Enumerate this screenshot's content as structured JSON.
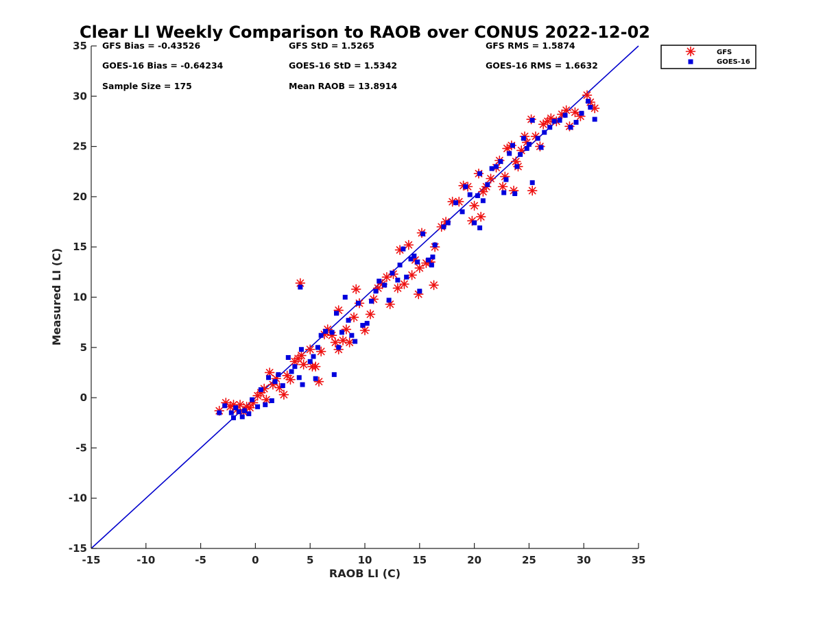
{
  "colors": {
    "gfs": "#ee1111",
    "goes16": "#0000dd",
    "line": "#0000cc",
    "axis": "#262626"
  },
  "stats": {
    "gfs_bias": "GFS Bias = -0.43526",
    "gfs_std": "GFS StD = 1.5265",
    "gfs_rms": "GFS RMS = 1.5874",
    "goes_bias": "GOES-16 Bias = -0.64234",
    "goes_std": "GOES-16 StD = 1.5342",
    "goes_rms": "GOES-16 RMS = 1.6632",
    "sample_size": "Sample Size = 175",
    "mean_raob": "Mean RAOB = 13.8914"
  },
  "chart_data": {
    "type": "scatter",
    "title": "Clear LI Weekly Comparison to RAOB over CONUS 2022-12-02",
    "xlabel": "RAOB LI (C)",
    "ylabel": "Measured LI (C)",
    "xlim": [
      -15,
      35
    ],
    "ylim": [
      -15,
      35
    ],
    "xticks": [
      -15,
      -10,
      -5,
      0,
      5,
      10,
      15,
      20,
      25,
      30,
      35
    ],
    "yticks": [
      -15,
      -10,
      -5,
      0,
      5,
      10,
      15,
      20,
      25,
      30,
      35
    ],
    "xtick_labels": [
      "-15",
      "-10",
      "-5",
      "0",
      "5",
      "10",
      "15",
      "20",
      "25",
      "30",
      "35"
    ],
    "ytick_labels": [
      "-15",
      "-10",
      "-5",
      "0",
      "5",
      "10",
      "15",
      "20",
      "25",
      "30",
      "35"
    ],
    "reference_line": {
      "name": "1:1",
      "from": [
        -15,
        -15
      ],
      "to": [
        35,
        35
      ]
    },
    "legend": {
      "position": "outside-top-right",
      "entries": [
        "GFS",
        "GOES-16"
      ]
    },
    "series": [
      {
        "name": "GFS",
        "marker": "asterisk",
        "points": [
          [
            -3.3,
            -1.3
          ],
          [
            -2.7,
            -0.5
          ],
          [
            -2.3,
            -0.9
          ],
          [
            -2.0,
            -0.7
          ],
          [
            -1.7,
            -1.2
          ],
          [
            -1.4,
            -0.7
          ],
          [
            -1.1,
            -1.4
          ],
          [
            -0.8,
            -0.9
          ],
          [
            -0.5,
            -1.0
          ],
          [
            -0.2,
            -0.5
          ],
          [
            0.2,
            0.2
          ],
          [
            0.5,
            0.5
          ],
          [
            0.8,
            0.9
          ],
          [
            1.0,
            -0.2
          ],
          [
            1.3,
            2.5
          ],
          [
            1.6,
            1.3
          ],
          [
            1.9,
            1.9
          ],
          [
            2.2,
            1.0
          ],
          [
            2.6,
            0.3
          ],
          [
            2.9,
            2.2
          ],
          [
            3.2,
            1.8
          ],
          [
            3.6,
            3.6
          ],
          [
            3.9,
            3.9
          ],
          [
            4.2,
            4.2
          ],
          [
            4.1,
            11.4
          ],
          [
            4.4,
            3.3
          ],
          [
            5.0,
            4.8
          ],
          [
            5.2,
            3.1
          ],
          [
            5.5,
            3.1
          ],
          [
            5.8,
            1.6
          ],
          [
            6.0,
            4.6
          ],
          [
            6.3,
            6.3
          ],
          [
            6.6,
            6.8
          ],
          [
            7.0,
            6.2
          ],
          [
            7.3,
            5.5
          ],
          [
            7.6,
            4.8
          ],
          [
            7.6,
            8.7
          ],
          [
            8.0,
            5.7
          ],
          [
            8.3,
            6.8
          ],
          [
            8.6,
            5.5
          ],
          [
            9.0,
            8.0
          ],
          [
            9.2,
            10.8
          ],
          [
            9.5,
            9.4
          ],
          [
            10.0,
            6.7
          ],
          [
            10.5,
            8.3
          ],
          [
            10.8,
            9.8
          ],
          [
            11.2,
            10.9
          ],
          [
            11.6,
            11.3
          ],
          [
            12.0,
            12.0
          ],
          [
            12.3,
            9.3
          ],
          [
            12.6,
            12.3
          ],
          [
            13.0,
            10.9
          ],
          [
            13.2,
            14.7
          ],
          [
            13.6,
            11.3
          ],
          [
            14.0,
            15.2
          ],
          [
            14.3,
            12.2
          ],
          [
            14.6,
            13.7
          ],
          [
            14.9,
            10.3
          ],
          [
            15.0,
            12.9
          ],
          [
            15.2,
            16.4
          ],
          [
            15.6,
            13.4
          ],
          [
            16.0,
            13.5
          ],
          [
            16.3,
            11.2
          ],
          [
            16.4,
            15.0
          ],
          [
            17.0,
            17.0
          ],
          [
            17.4,
            17.5
          ],
          [
            18.0,
            19.5
          ],
          [
            18.6,
            19.5
          ],
          [
            19.0,
            21.1
          ],
          [
            19.4,
            21.0
          ],
          [
            19.8,
            17.6
          ],
          [
            20.0,
            19.1
          ],
          [
            20.4,
            22.3
          ],
          [
            20.6,
            18.0
          ],
          [
            20.8,
            20.5
          ],
          [
            21.1,
            21.0
          ],
          [
            21.5,
            21.8
          ],
          [
            22.0,
            22.9
          ],
          [
            22.3,
            23.6
          ],
          [
            22.6,
            21.0
          ],
          [
            22.8,
            22.0
          ],
          [
            23.0,
            24.8
          ],
          [
            23.4,
            25.1
          ],
          [
            23.6,
            20.6
          ],
          [
            23.8,
            23.5
          ],
          [
            24.0,
            23.0
          ],
          [
            24.3,
            24.6
          ],
          [
            24.6,
            26.0
          ],
          [
            24.8,
            25.4
          ],
          [
            25.2,
            27.7
          ],
          [
            25.3,
            20.6
          ],
          [
            25.6,
            26.0
          ],
          [
            26.0,
            25.0
          ],
          [
            26.3,
            27.2
          ],
          [
            26.7,
            27.5
          ],
          [
            27.0,
            27.8
          ],
          [
            27.5,
            27.5
          ],
          [
            28.0,
            28.2
          ],
          [
            28.4,
            28.6
          ],
          [
            28.7,
            27.0
          ],
          [
            29.2,
            28.4
          ],
          [
            29.7,
            28.0
          ],
          [
            30.3,
            30.1
          ],
          [
            30.6,
            29.4
          ],
          [
            31.0,
            28.8
          ]
        ]
      },
      {
        "name": "GOES-16",
        "marker": "square",
        "points": [
          [
            -3.3,
            -1.5
          ],
          [
            -2.8,
            -0.8
          ],
          [
            -2.2,
            -1.5
          ],
          [
            -2.0,
            -2.0
          ],
          [
            -1.8,
            -1.0
          ],
          [
            -1.5,
            -1.4
          ],
          [
            -1.2,
            -1.9
          ],
          [
            -1.0,
            -1.3
          ],
          [
            -0.6,
            -1.6
          ],
          [
            -0.3,
            -0.2
          ],
          [
            0.2,
            -0.9
          ],
          [
            0.5,
            0.8
          ],
          [
            0.9,
            -0.7
          ],
          [
            1.2,
            2.0
          ],
          [
            1.5,
            -0.3
          ],
          [
            1.8,
            1.6
          ],
          [
            2.1,
            2.3
          ],
          [
            2.5,
            1.2
          ],
          [
            3.0,
            4.0
          ],
          [
            3.3,
            2.6
          ],
          [
            3.6,
            3.1
          ],
          [
            4.0,
            2.0
          ],
          [
            4.1,
            11.0
          ],
          [
            4.3,
            1.3
          ],
          [
            4.2,
            4.8
          ],
          [
            5.0,
            3.6
          ],
          [
            5.3,
            4.1
          ],
          [
            5.5,
            1.9
          ],
          [
            5.7,
            5.0
          ],
          [
            6.0,
            6.2
          ],
          [
            6.4,
            6.6
          ],
          [
            7.0,
            6.5
          ],
          [
            7.2,
            2.3
          ],
          [
            7.4,
            8.4
          ],
          [
            7.6,
            5.0
          ],
          [
            7.9,
            6.5
          ],
          [
            8.2,
            10.0
          ],
          [
            8.5,
            7.7
          ],
          [
            8.8,
            6.2
          ],
          [
            9.1,
            5.6
          ],
          [
            9.4,
            9.4
          ],
          [
            9.8,
            7.2
          ],
          [
            10.2,
            7.4
          ],
          [
            10.6,
            9.6
          ],
          [
            11.0,
            10.6
          ],
          [
            11.3,
            11.6
          ],
          [
            11.8,
            11.2
          ],
          [
            12.2,
            9.7
          ],
          [
            12.5,
            12.4
          ],
          [
            13.0,
            11.7
          ],
          [
            13.2,
            13.2
          ],
          [
            13.5,
            14.8
          ],
          [
            13.8,
            12.0
          ],
          [
            14.2,
            13.8
          ],
          [
            14.5,
            14.1
          ],
          [
            14.8,
            13.5
          ],
          [
            15.0,
            10.6
          ],
          [
            15.3,
            16.3
          ],
          [
            15.8,
            13.7
          ],
          [
            16.1,
            13.2
          ],
          [
            16.4,
            15.2
          ],
          [
            16.2,
            14.0
          ],
          [
            17.2,
            17.0
          ],
          [
            17.6,
            17.4
          ],
          [
            18.3,
            19.4
          ],
          [
            18.9,
            18.5
          ],
          [
            19.2,
            21.0
          ],
          [
            19.6,
            20.2
          ],
          [
            20.0,
            17.4
          ],
          [
            20.3,
            20.1
          ],
          [
            20.5,
            16.9
          ],
          [
            20.5,
            22.3
          ],
          [
            20.8,
            19.6
          ],
          [
            21.2,
            21.2
          ],
          [
            21.6,
            22.8
          ],
          [
            22.0,
            23.0
          ],
          [
            22.4,
            23.5
          ],
          [
            22.7,
            20.4
          ],
          [
            22.9,
            21.7
          ],
          [
            23.2,
            24.3
          ],
          [
            23.5,
            25.1
          ],
          [
            23.7,
            20.3
          ],
          [
            23.9,
            23.0
          ],
          [
            24.2,
            24.2
          ],
          [
            24.5,
            25.8
          ],
          [
            24.8,
            24.8
          ],
          [
            25.0,
            25.2
          ],
          [
            25.3,
            21.4
          ],
          [
            25.3,
            27.6
          ],
          [
            25.8,
            25.8
          ],
          [
            26.1,
            24.9
          ],
          [
            26.4,
            26.4
          ],
          [
            26.9,
            26.9
          ],
          [
            27.3,
            27.5
          ],
          [
            27.8,
            27.6
          ],
          [
            28.3,
            28.1
          ],
          [
            28.8,
            26.9
          ],
          [
            29.3,
            27.4
          ],
          [
            29.8,
            28.3
          ],
          [
            30.4,
            29.5
          ],
          [
            30.6,
            28.9
          ],
          [
            31.0,
            27.7
          ]
        ]
      }
    ]
  }
}
